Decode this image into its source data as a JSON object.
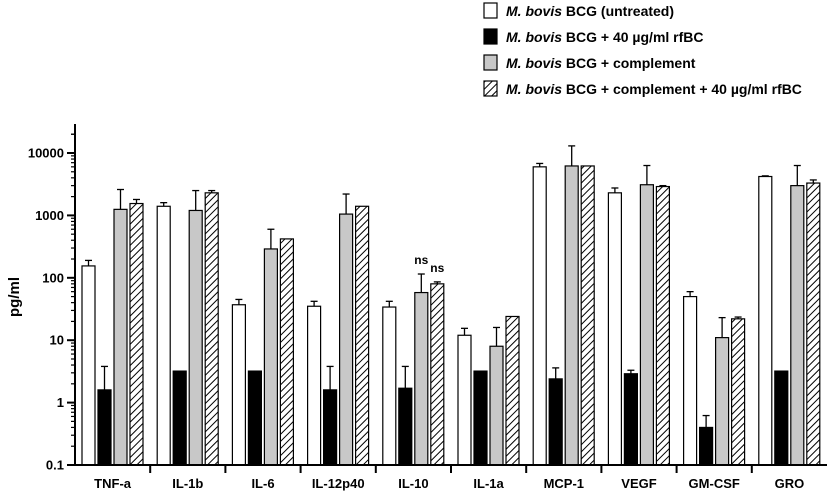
{
  "chart_data": {
    "type": "bar",
    "scale": "log",
    "title": "",
    "xlabel": "",
    "ylabel": "pg/ml",
    "ylim": [
      0.1,
      30000
    ],
    "yticks": [
      0.1,
      1,
      10,
      100,
      1000,
      10000
    ],
    "ytick_labels": [
      "0.1",
      "1",
      "10",
      "100",
      "1000",
      "10000"
    ],
    "categories": [
      "TNF-a",
      "IL-1b",
      "IL-6",
      "IL-12p40",
      "IL-10",
      "IL-1a",
      "MCP-1",
      "VEGF",
      "GM-CSF",
      "GRO"
    ],
    "series": [
      {
        "name": "M. bovis BCG (untreated)",
        "legend_italic": "M. bovis",
        "legend_rest": " BCG (untreated)",
        "fill": "open",
        "values": [
          155,
          1400,
          37,
          35,
          34,
          12,
          6000,
          2300,
          50,
          4200
        ],
        "errors": [
          190,
          1600,
          45,
          42,
          42,
          15.5,
          6800,
          2750,
          60,
          4300
        ]
      },
      {
        "name": "M. bovis BCG + 40 µg/ml rfBC",
        "legend_italic": "M. bovis",
        "legend_rest": " BCG + 40 µg/ml rfBC",
        "fill": "black",
        "values": [
          1.6,
          3.2,
          3.2,
          1.6,
          1.7,
          3.2,
          2.4,
          2.9,
          0.4,
          3.2
        ],
        "errors": [
          3.8,
          null,
          null,
          3.8,
          3.8,
          null,
          3.6,
          3.3,
          0.62,
          null
        ]
      },
      {
        "name": "M. bovis BCG + complement",
        "legend_italic": "M. bovis",
        "legend_rest": " BCG + complement",
        "fill": "gray",
        "values": [
          1250,
          1200,
          290,
          1050,
          58,
          8,
          6200,
          3100,
          11,
          3000
        ],
        "errors": [
          2600,
          2500,
          600,
          2200,
          115,
          16,
          13000,
          6300,
          23,
          6300
        ]
      },
      {
        "name": "M. bovis BCG + complement + 40 µg/ml rfBC",
        "legend_italic": "M. bovis",
        "legend_rest": " BCG + complement + 40 µg/ml rfBC",
        "fill": "hatched",
        "values": [
          1550,
          2300,
          420,
          1400,
          80,
          24,
          6200,
          2900,
          22,
          3300
        ],
        "errors": [
          1800,
          2500,
          null,
          null,
          86,
          null,
          null,
          3000,
          23.5,
          3700
        ]
      }
    ],
    "annotations": [
      {
        "text": "ns",
        "category": "IL-10",
        "series": 2
      },
      {
        "text": "ns",
        "category": "IL-10",
        "series": 3
      }
    ]
  }
}
